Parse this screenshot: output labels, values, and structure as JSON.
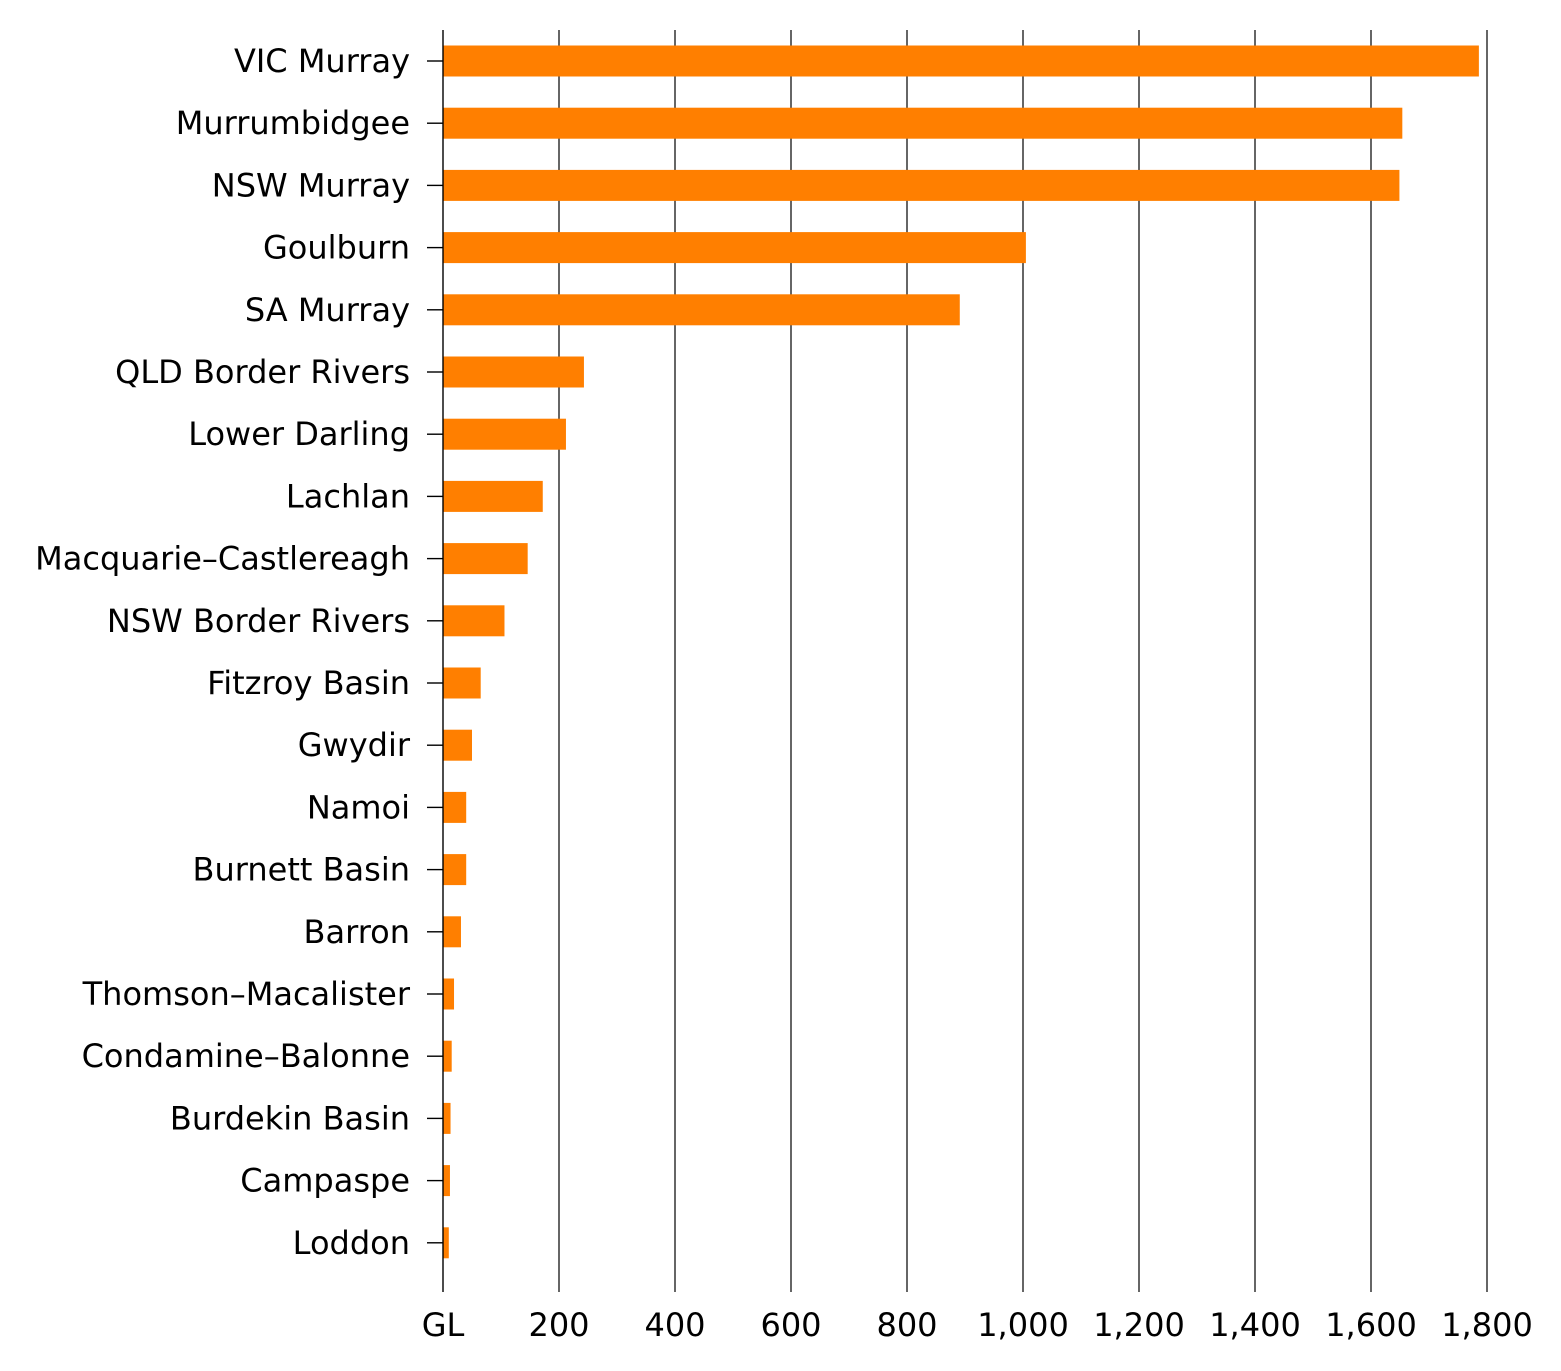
{
  "chart_data": {
    "type": "bar",
    "orientation": "horizontal",
    "categories": [
      "VIC Murray",
      "Murrumbidgee",
      "NSW Murray",
      "Goulburn",
      "SA Murray",
      "QLD Border Rivers",
      "Lower Darling",
      "Lachlan",
      "Macquarie–Castlereagh",
      "NSW Border Rivers",
      "Fitzroy Basin",
      "Gwydir",
      "Namoi",
      "Burnett Basin",
      "Barron",
      "Thomson–Macalister",
      "Condamine–Balonne",
      "Burdekin Basin",
      "Campaspe",
      "Loddon"
    ],
    "values": [
      1786,
      1654,
      1649,
      1005,
      891,
      243,
      212,
      172,
      146,
      106,
      65,
      50,
      40,
      40,
      31,
      19,
      15,
      13,
      12,
      10
    ],
    "xlabel": "GL",
    "ylabel": "",
    "title": "",
    "xlim": [
      0,
      1800
    ],
    "xticks": [
      200,
      400,
      600,
      800,
      1000,
      1200,
      1400,
      1600,
      1800
    ],
    "xtick_labels": [
      "200",
      "400",
      "600",
      "800",
      "1,000",
      "1,200",
      "1,400",
      "1,600",
      "1,800"
    ],
    "grid": "vertical",
    "legend": "none",
    "bar_color": "#FF7F00"
  }
}
